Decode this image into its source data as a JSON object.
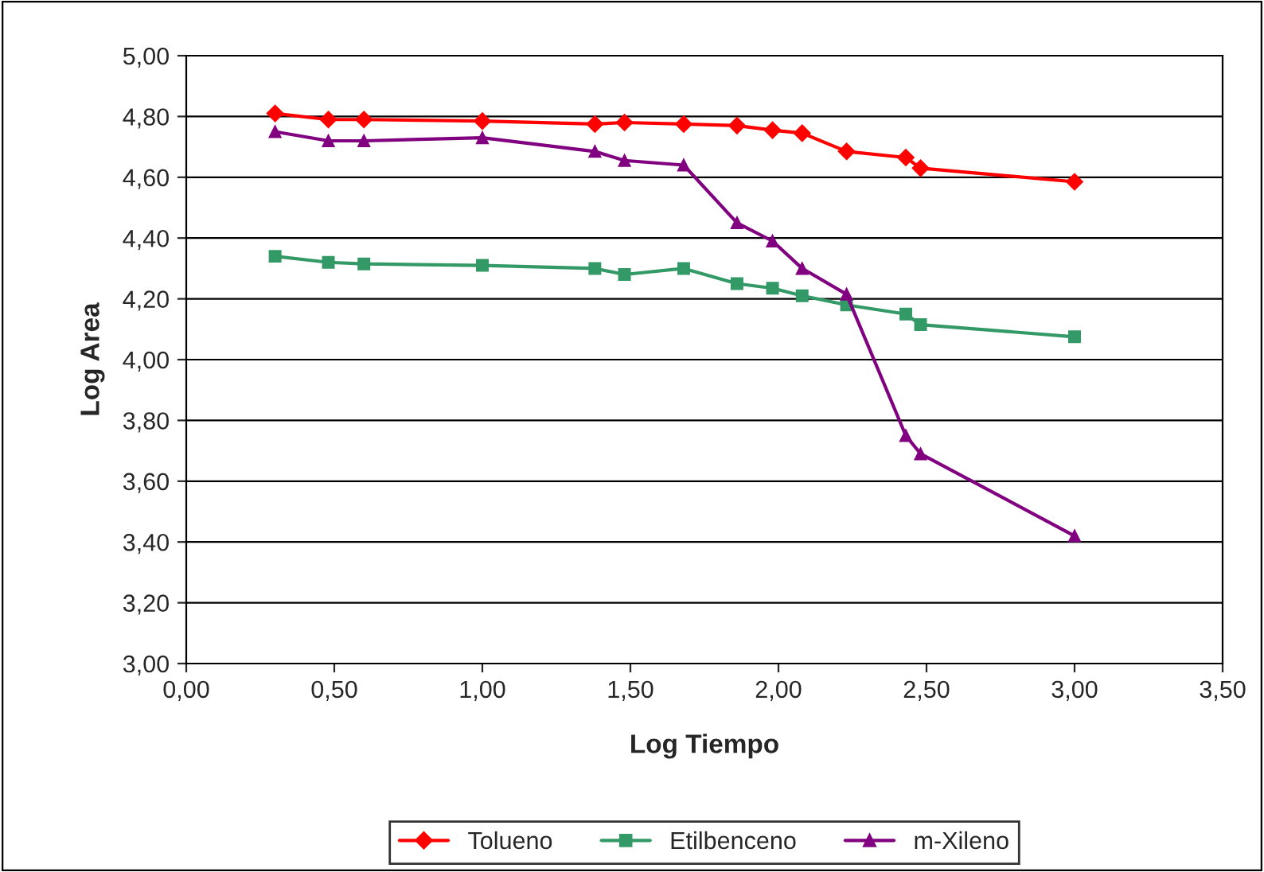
{
  "chart_data": {
    "type": "line",
    "xlabel": "Log Tiempo",
    "ylabel": "Log Area",
    "x": [
      0.3,
      0.48,
      0.6,
      1.0,
      1.38,
      1.48,
      1.68,
      1.86,
      1.98,
      2.08,
      2.23,
      2.43,
      2.48,
      3.0
    ],
    "series": [
      {
        "name": "Tolueno",
        "color": "#ff0000",
        "marker": "diamond",
        "values": [
          4.81,
          4.79,
          4.79,
          4.785,
          4.775,
          4.78,
          4.775,
          4.77,
          4.755,
          4.745,
          4.685,
          4.665,
          4.63,
          4.585
        ]
      },
      {
        "name": "Etilbenceno",
        "color": "#339966",
        "marker": "square",
        "values": [
          4.34,
          4.32,
          4.315,
          4.31,
          4.3,
          4.28,
          4.3,
          4.25,
          4.235,
          4.21,
          4.18,
          4.15,
          4.115,
          4.075
        ]
      },
      {
        "name": "m-Xileno",
        "color": "#800080",
        "marker": "triangle",
        "values": [
          4.75,
          4.72,
          4.72,
          4.73,
          4.685,
          4.655,
          4.64,
          4.45,
          4.39,
          4.3,
          4.215,
          3.75,
          3.69,
          3.42
        ]
      }
    ],
    "xlim": [
      0,
      3.5
    ],
    "xticks": [
      {
        "value": 0,
        "label": "0,00"
      },
      {
        "value": 0.5,
        "label": "0,50"
      },
      {
        "value": 1,
        "label": "1,00"
      },
      {
        "value": 1.5,
        "label": "1,50"
      },
      {
        "value": 2,
        "label": "2,00"
      },
      {
        "value": 2.5,
        "label": "2,50"
      },
      {
        "value": 3,
        "label": "3,00"
      },
      {
        "value": 3.5,
        "label": "3,50"
      }
    ],
    "ylim": [
      3,
      5
    ],
    "yticks": [
      {
        "value": 3,
        "label": "3,00"
      },
      {
        "value": 3.2,
        "label": "3,20"
      },
      {
        "value": 3.4,
        "label": "3,40"
      },
      {
        "value": 3.6,
        "label": "3,60"
      },
      {
        "value": 3.8,
        "label": "3,80"
      },
      {
        "value": 4,
        "label": "4,00"
      },
      {
        "value": 4.2,
        "label": "4,20"
      },
      {
        "value": 4.4,
        "label": "4,40"
      },
      {
        "value": 4.6,
        "label": "4,60"
      },
      {
        "value": 4.8,
        "label": "4,80"
      },
      {
        "value": 5,
        "label": "5,00"
      }
    ],
    "grid": "y",
    "legend": "bottom",
    "line_style": "solid"
  }
}
